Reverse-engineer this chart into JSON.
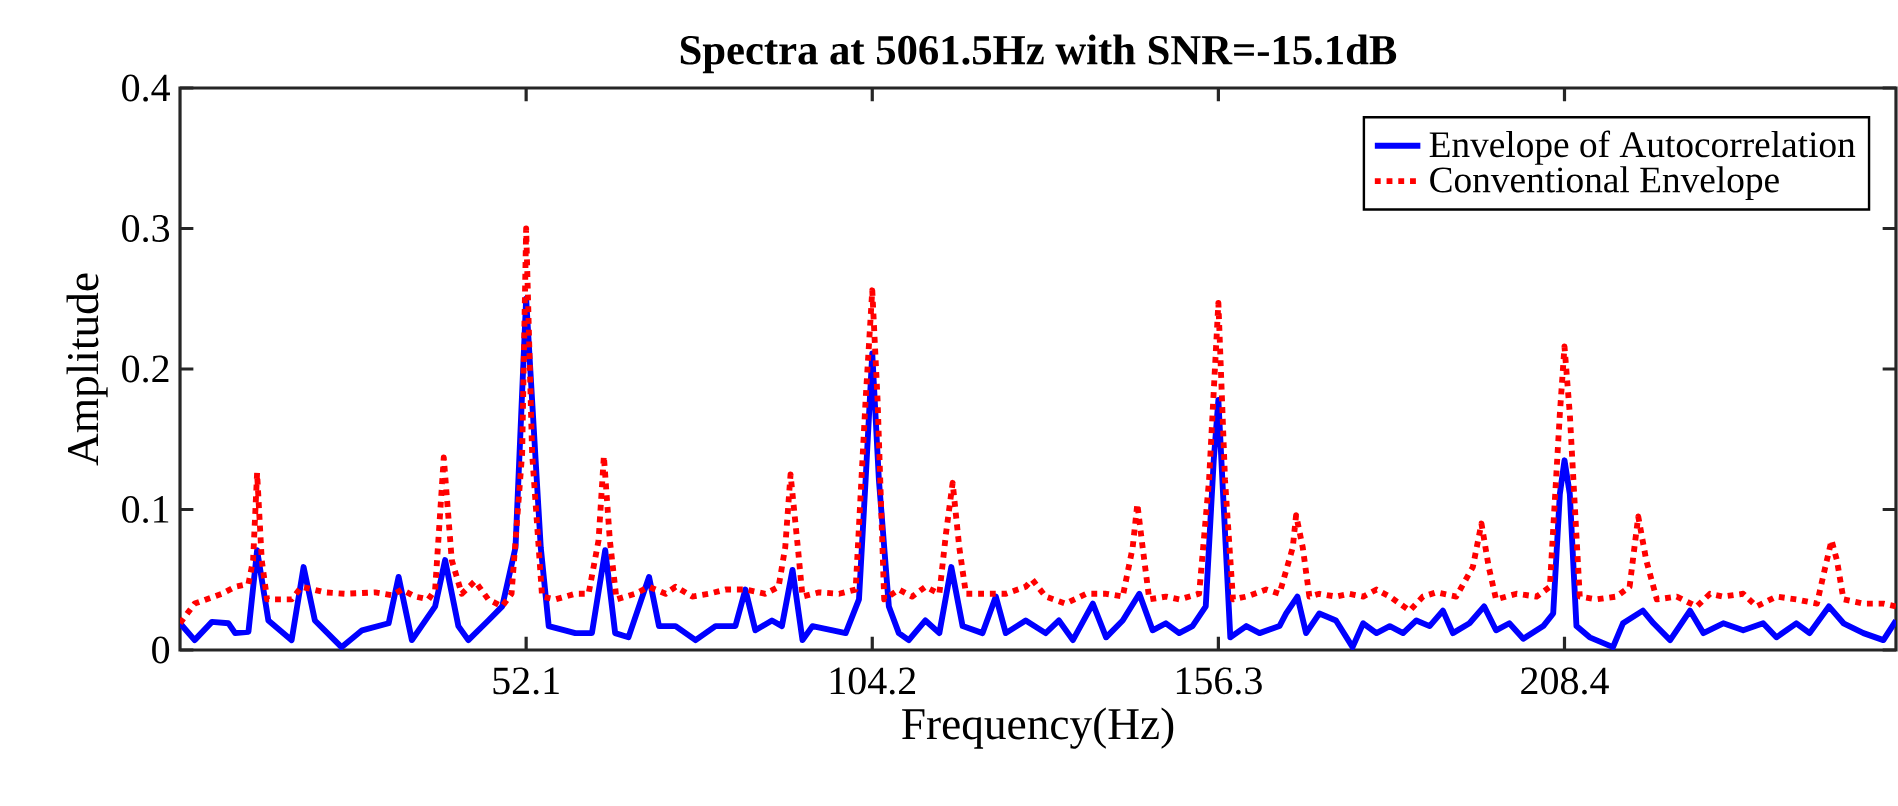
{
  "chart_data": {
    "type": "line",
    "title": "Spectra at 5061.5Hz with SNR=-15.1dB",
    "xlabel": "Frequency(Hz)",
    "ylabel": "Amplitude",
    "xlim": [
      0,
      258.3
    ],
    "ylim": [
      0,
      0.4
    ],
    "xticks": [
      52.1,
      104.2,
      156.3,
      208.4
    ],
    "yticks": [
      0,
      0.1,
      0.2,
      0.3,
      0.4
    ],
    "grid": false,
    "legend": "top right",
    "series": [
      {
        "name": "Envelope of Autocorrelation",
        "color": "#0000ff",
        "line_style": "solid",
        "x": [
          0,
          2.2,
          4.8,
          7.3,
          8.3,
          10.3,
          11.6,
          13.3,
          16.8,
          18.6,
          20.3,
          24.3,
          27.4,
          31.4,
          32.9,
          34.9,
          38.4,
          39.9,
          41.9,
          43.4,
          46.4,
          48.5,
          50.5,
          52.1,
          54.3,
          55.5,
          59.5,
          62.0,
          64.0,
          65.5,
          67.5,
          70.6,
          72.1,
          74.6,
          77.6,
          80.6,
          83.6,
          85.1,
          86.6,
          89.1,
          90.6,
          92.2,
          93.7,
          95.2,
          100.2,
          102.2,
          103.2,
          104.2,
          105.2,
          106.7,
          108.2,
          109.7,
          112.2,
          114.3,
          116.1,
          117.8,
          120.8,
          122.8,
          124.3,
          127.3,
          130.3,
          132.3,
          134.4,
          137.4,
          139.4,
          141.9,
          144.4,
          146.4,
          148.4,
          150.4,
          152.4,
          154.4,
          155.6,
          156.3,
          156.9,
          158.1,
          160.5,
          162.5,
          165.5,
          166.5,
          168.2,
          169.5,
          171.5,
          174.0,
          176.5,
          178.1,
          180.1,
          182.1,
          184.1,
          186.1,
          188.1,
          190.1,
          191.6,
          194.1,
          196.3,
          198.1,
          200.1,
          202.2,
          205.2,
          206.7,
          207.7,
          208.4,
          209.2,
          210.2,
          212.2,
          215.7,
          217.2,
          220.2,
          221.8,
          224.3,
          227.3,
          229.3,
          232.3,
          235.3,
          238.3,
          240.3,
          243.3,
          245.3,
          248.2,
          250.4,
          253.4,
          256.4,
          258.3
        ],
        "values": [
          0.019,
          0.007,
          0.02,
          0.019,
          0.012,
          0.013,
          0.071,
          0.021,
          0.007,
          0.059,
          0.021,
          0.002,
          0.014,
          0.019,
          0.052,
          0.007,
          0.031,
          0.064,
          0.017,
          0.007,
          0.021,
          0.031,
          0.073,
          0.25,
          0.073,
          0.017,
          0.012,
          0.012,
          0.071,
          0.012,
          0.009,
          0.052,
          0.017,
          0.017,
          0.007,
          0.017,
          0.017,
          0.043,
          0.014,
          0.021,
          0.017,
          0.057,
          0.007,
          0.017,
          0.012,
          0.036,
          0.121,
          0.211,
          0.121,
          0.031,
          0.012,
          0.007,
          0.021,
          0.012,
          0.059,
          0.017,
          0.012,
          0.038,
          0.012,
          0.021,
          0.012,
          0.021,
          0.007,
          0.033,
          0.009,
          0.021,
          0.04,
          0.014,
          0.019,
          0.012,
          0.017,
          0.031,
          0.135,
          0.178,
          0.121,
          0.009,
          0.017,
          0.012,
          0.017,
          0.026,
          0.038,
          0.012,
          0.026,
          0.021,
          0.002,
          0.019,
          0.012,
          0.017,
          0.012,
          0.021,
          0.017,
          0.028,
          0.012,
          0.019,
          0.031,
          0.014,
          0.019,
          0.008,
          0.017,
          0.026,
          0.111,
          0.135,
          0.111,
          0.017,
          0.009,
          0.002,
          0.019,
          0.028,
          0.019,
          0.007,
          0.028,
          0.012,
          0.019,
          0.014,
          0.019,
          0.009,
          0.019,
          0.012,
          0.031,
          0.019,
          0.012,
          0.007,
          0.021
        ]
      },
      {
        "name": "Conventional Envelope",
        "color": "#ff0000",
        "line_style": "dotted",
        "x": [
          0,
          2.2,
          6.3,
          8.3,
          10.3,
          11.0,
          11.6,
          12.3,
          13.1,
          16.8,
          18.3,
          21.8,
          24.8,
          29.4,
          31.9,
          33.4,
          35.4,
          37.4,
          38.4,
          39.7,
          40.9,
          42.4,
          44.4,
          46.4,
          48.5,
          49.9,
          51.5,
          52.1,
          53.0,
          54.5,
          56.5,
          59.5,
          61.5,
          63.0,
          63.8,
          64.7,
          65.7,
          68.5,
          70.6,
          73.1,
          74.6,
          77.1,
          79.6,
          82.1,
          85.1,
          88.1,
          90.1,
          91.1,
          91.9,
          93.0,
          93.7,
          96.2,
          99.2,
          101.7,
          103.2,
          104.2,
          105.0,
          106.0,
          108.2,
          110.2,
          112.2,
          114.3,
          115.3,
          116.3,
          117.3,
          118.3,
          121.3,
          124.3,
          127.3,
          128.3,
          130.3,
          133.3,
          136.4,
          139.4,
          141.9,
          143.4,
          144.1,
          144.9,
          145.9,
          148.4,
          150.4,
          153.4,
          154.9,
          156.3,
          157.3,
          158.5,
          160.5,
          163.5,
          165.5,
          167.5,
          168.0,
          169.0,
          170.0,
          171.5,
          174.0,
          176.0,
          178.1,
          180.1,
          182.1,
          185.1,
          187.1,
          189.1,
          192.1,
          194.6,
          195.9,
          197.0,
          198.1,
          201.2,
          204.2,
          206.2,
          207.7,
          208.4,
          209.2,
          210.7,
          213.2,
          216.2,
          218.2,
          219.5,
          220.7,
          222.3,
          225.3,
          228.3,
          230.3,
          232.3,
          235.3,
          237.3,
          240.3,
          243.3,
          246.4,
          247.9,
          248.6,
          249.4,
          250.4,
          253.4,
          256.4,
          258.3
        ],
        "values": [
          0.019,
          0.033,
          0.04,
          0.045,
          0.047,
          0.064,
          0.126,
          0.064,
          0.036,
          0.036,
          0.045,
          0.041,
          0.04,
          0.041,
          0.039,
          0.043,
          0.038,
          0.036,
          0.043,
          0.137,
          0.064,
          0.04,
          0.049,
          0.036,
          0.031,
          0.04,
          0.14,
          0.3,
          0.14,
          0.038,
          0.036,
          0.04,
          0.04,
          0.078,
          0.138,
          0.078,
          0.036,
          0.04,
          0.045,
          0.04,
          0.045,
          0.038,
          0.04,
          0.043,
          0.043,
          0.04,
          0.045,
          0.073,
          0.125,
          0.073,
          0.038,
          0.041,
          0.04,
          0.043,
          0.178,
          0.256,
          0.178,
          0.036,
          0.043,
          0.038,
          0.045,
          0.04,
          0.083,
          0.119,
          0.073,
          0.04,
          0.04,
          0.04,
          0.045,
          0.05,
          0.038,
          0.033,
          0.04,
          0.04,
          0.038,
          0.073,
          0.104,
          0.073,
          0.036,
          0.038,
          0.036,
          0.04,
          0.121,
          0.247,
          0.121,
          0.036,
          0.038,
          0.043,
          0.04,
          0.073,
          0.096,
          0.073,
          0.038,
          0.04,
          0.038,
          0.04,
          0.038,
          0.043,
          0.038,
          0.028,
          0.038,
          0.041,
          0.038,
          0.059,
          0.09,
          0.059,
          0.036,
          0.04,
          0.038,
          0.045,
          0.168,
          0.216,
          0.168,
          0.038,
          0.036,
          0.038,
          0.045,
          0.095,
          0.064,
          0.036,
          0.038,
          0.031,
          0.04,
          0.038,
          0.04,
          0.031,
          0.038,
          0.036,
          0.033,
          0.064,
          0.078,
          0.064,
          0.036,
          0.033,
          0.033,
          0.031
        ]
      }
    ]
  }
}
